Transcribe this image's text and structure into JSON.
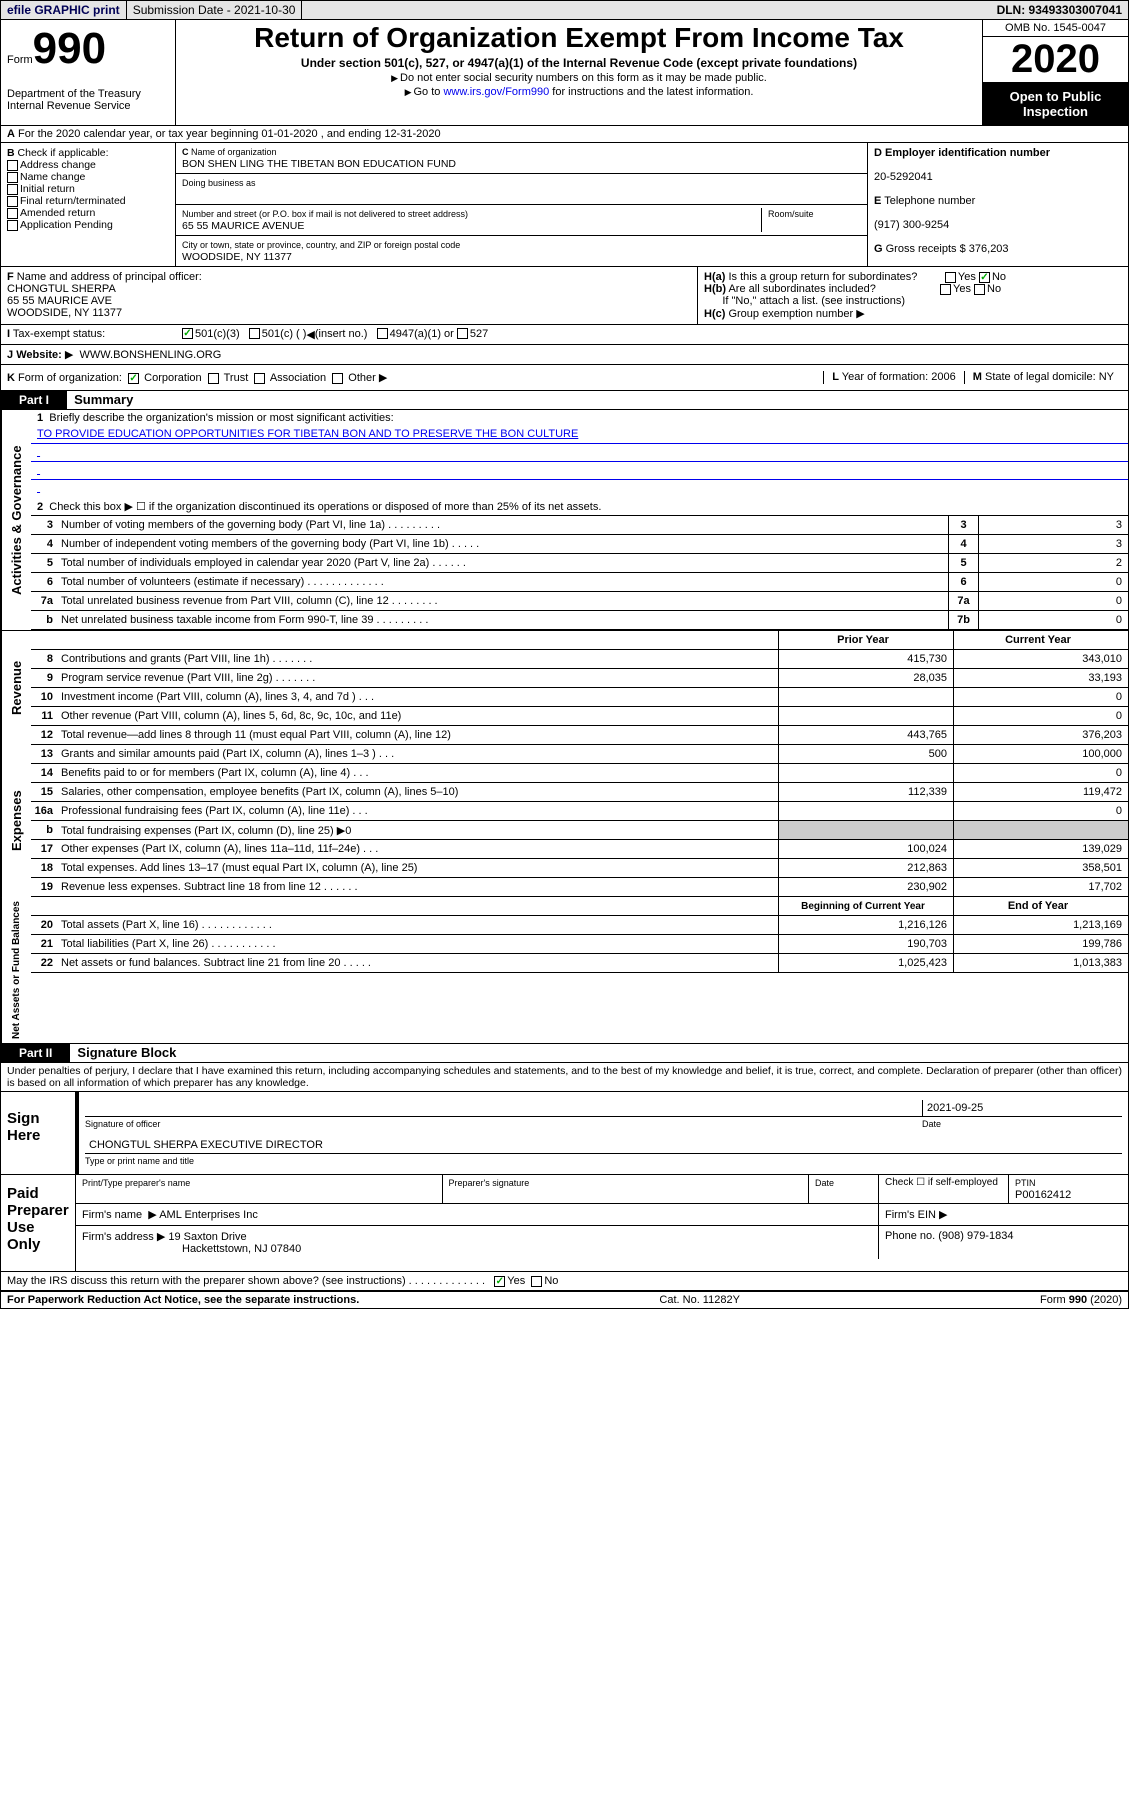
{
  "topbar": {
    "efile_label": "efile GRAPHIC print",
    "submission_label": "Submission Date - 2021-10-30",
    "dln_label": "DLN: 93493303007041"
  },
  "header": {
    "form_prefix": "Form",
    "form_number": "990",
    "dept": "Department of the Treasury\nInternal Revenue Service",
    "title": "Return of Organization Exempt From Income Tax",
    "subtitle": "Under section 501(c), 527, or 4947(a)(1) of the Internal Revenue Code (except private foundations)",
    "note1": "Do not enter social security numbers on this form as it may be made public.",
    "note2_pre": "Go to ",
    "note2_link": "www.irs.gov/Form990",
    "note2_post": " for instructions and the latest information.",
    "omb": "OMB No. 1545-0047",
    "year": "2020",
    "inspection": "Open to Public Inspection"
  },
  "row_a": "For the 2020 calendar year, or tax year beginning 01-01-2020    , and ending 12-31-2020",
  "check_b": {
    "label": "Check if applicable:",
    "items": [
      "Address change",
      "Name change",
      "Initial return",
      "Final return/terminated",
      "Amended return",
      "Application Pending"
    ]
  },
  "org": {
    "c_label": "Name of organization",
    "name": "BON SHEN LING THE TIBETAN BON EDUCATION FUND",
    "dba_label": "Doing business as",
    "street_label": "Number and street (or P.O. box if mail is not delivered to street address)",
    "street": "65 55 MAURICE AVENUE",
    "room_label": "Room/suite",
    "city_label": "City or town, state or province, country, and ZIP or foreign postal code",
    "city": "WOODSIDE, NY  11377"
  },
  "d": {
    "ein_label": "Employer identification number",
    "ein": "20-5292041",
    "phone_label": "Telephone number",
    "phone": "(917) 300-9254",
    "gross_label": "Gross receipts $",
    "gross": "376,203"
  },
  "f": {
    "label": "Name and address of principal officer:",
    "name": "CHONGTUL SHERPA",
    "addr1": "65 55 MAURICE AVE",
    "addr2": "WOODSIDE, NY  11377"
  },
  "h": {
    "a_label": "Is this a group return for subordinates?",
    "b_label": "Are all subordinates included?",
    "b_note": "If \"No,\" attach a list. (see instructions)",
    "c_label": "Group exemption number"
  },
  "i": {
    "label": "Tax-exempt status:",
    "opt1": "501(c)(3)",
    "opt2": "501(c) (  )",
    "opt2b": "(insert no.)",
    "opt3": "4947(a)(1) or",
    "opt4": "527"
  },
  "j": {
    "label": "Website:",
    "value": "WWW.BONSHENLING.ORG"
  },
  "k": {
    "label": "Form of organization:",
    "opts": [
      "Corporation",
      "Trust",
      "Association",
      "Other"
    ],
    "l_label": "Year of formation:",
    "l_val": "2006",
    "m_label": "State of legal domicile:",
    "m_val": "NY"
  },
  "part1": {
    "hdr": "Part I",
    "title": "Summary",
    "q1_label": "Briefly describe the organization's mission or most significant activities:",
    "q1_val": "TO PROVIDE EDUCATION OPPORTUNITIES FOR TIBETAN BON AND TO PRESERVE THE BON CULTURE",
    "q2_label": "Check this box ▶ ☐ if the organization discontinued its operations or disposed of more than 25% of its net assets.",
    "lines_gov": [
      {
        "n": "3",
        "t": "Number of voting members of the governing body (Part VI, line 1a)   .   .   .   .   .   .   .   .   .",
        "bn": "3",
        "v": "3"
      },
      {
        "n": "4",
        "t": "Number of independent voting members of the governing body (Part VI, line 1b)   .   .   .   .   .",
        "bn": "4",
        "v": "3"
      },
      {
        "n": "5",
        "t": "Total number of individuals employed in calendar year 2020 (Part V, line 2a)   .   .   .   .   .   .",
        "bn": "5",
        "v": "2"
      },
      {
        "n": "6",
        "t": "Total number of volunteers (estimate if necessary)   .   .   .   .   .   .   .   .   .   .   .   .   .",
        "bn": "6",
        "v": "0"
      },
      {
        "n": "7a",
        "t": "Total unrelated business revenue from Part VIII, column (C), line 12   .   .   .   .   .   .   .   .",
        "bn": "7a",
        "v": "0"
      },
      {
        "n": "b",
        "t": "Net unrelated business taxable income from Form 990-T, line 39   .   .   .   .   .   .   .   .   .",
        "bn": "7b",
        "v": "0"
      }
    ],
    "prior_label": "Prior Year",
    "current_label": "Current Year",
    "lines_rev": [
      {
        "n": "8",
        "t": "Contributions and grants (Part VIII, line 1h)   .   .   .   .   .   .   .",
        "p": "415,730",
        "c": "343,010"
      },
      {
        "n": "9",
        "t": "Program service revenue (Part VIII, line 2g)   .   .   .   .   .   .   .",
        "p": "28,035",
        "c": "33,193"
      },
      {
        "n": "10",
        "t": "Investment income (Part VIII, column (A), lines 3, 4, and 7d )   .   .   .",
        "p": "",
        "c": "0"
      },
      {
        "n": "11",
        "t": "Other revenue (Part VIII, column (A), lines 5, 6d, 8c, 9c, 10c, and 11e)",
        "p": "",
        "c": "0"
      },
      {
        "n": "12",
        "t": "Total revenue—add lines 8 through 11 (must equal Part VIII, column (A), line 12)",
        "p": "443,765",
        "c": "376,203"
      }
    ],
    "lines_exp": [
      {
        "n": "13",
        "t": "Grants and similar amounts paid (Part IX, column (A), lines 1–3 )   .   .   .",
        "p": "500",
        "c": "100,000"
      },
      {
        "n": "14",
        "t": "Benefits paid to or for members (Part IX, column (A), line 4)   .   .   .",
        "p": "",
        "c": "0"
      },
      {
        "n": "15",
        "t": "Salaries, other compensation, employee benefits (Part IX, column (A), lines 5–10)",
        "p": "112,339",
        "c": "119,472"
      },
      {
        "n": "16a",
        "t": "Professional fundraising fees (Part IX, column (A), line 11e)   .   .   .",
        "p": "",
        "c": "0"
      },
      {
        "n": "b",
        "t": "Total fundraising expenses (Part IX, column (D), line 25) ▶0",
        "p": "gray",
        "c": "gray"
      },
      {
        "n": "17",
        "t": "Other expenses (Part IX, column (A), lines 11a–11d, 11f–24e)   .   .   .",
        "p": "100,024",
        "c": "139,029"
      },
      {
        "n": "18",
        "t": "Total expenses. Add lines 13–17 (must equal Part IX, column (A), line 25)",
        "p": "212,863",
        "c": "358,501"
      },
      {
        "n": "19",
        "t": "Revenue less expenses. Subtract line 18 from line 12   .   .   .   .   .   .",
        "p": "230,902",
        "c": "17,702"
      }
    ],
    "begin_label": "Beginning of Current Year",
    "end_label": "End of Year",
    "lines_net": [
      {
        "n": "20",
        "t": "Total assets (Part X, line 16)   .   .   .   .   .   .   .   .   .   .   .   .",
        "p": "1,216,126",
        "c": "1,213,169"
      },
      {
        "n": "21",
        "t": "Total liabilities (Part X, line 26)   .   .   .   .   .   .   .   .   .   .   .",
        "p": "190,703",
        "c": "199,786"
      },
      {
        "n": "22",
        "t": "Net assets or fund balances. Subtract line 21 from line 20   .   .   .   .   .",
        "p": "1,025,423",
        "c": "1,013,383"
      }
    ]
  },
  "vtabs": {
    "gov": "Activities & Governance",
    "rev": "Revenue",
    "exp": "Expenses",
    "net": "Net Assets or Fund Balances"
  },
  "part2": {
    "hdr": "Part II",
    "title": "Signature Block",
    "decl": "Under penalties of perjury, I declare that I have examined this return, including accompanying schedules and statements, and to the best of my knowledge and belief, it is true, correct, and complete. Declaration of preparer (other than officer) is based on all information of which preparer has any knowledge.",
    "sign_here": "Sign Here",
    "sig_officer": "Signature of officer",
    "sig_date": "2021-09-25",
    "date_label": "Date",
    "officer_name": "CHONGTUL SHERPA  EXECUTIVE DIRECTOR",
    "type_label": "Type or print name and title",
    "paid_label": "Paid Preparer Use Only",
    "prep_name_label": "Print/Type preparer's name",
    "prep_sig_label": "Preparer's signature",
    "self_emp": "Check ☐ if self-employed",
    "ptin_label": "PTIN",
    "ptin": "P00162412",
    "firm_name_label": "Firm's name",
    "firm_name": "AML Enterprises Inc",
    "firm_ein_label": "Firm's EIN",
    "firm_addr_label": "Firm's address",
    "firm_addr1": "19 Saxton Drive",
    "firm_addr2": "Hackettstown, NJ  07840",
    "firm_phone_label": "Phone no.",
    "firm_phone": "(908) 979-1834",
    "discuss": "May the IRS discuss this return with the preparer shown above? (see instructions)   .   .   .   .   .   .   .   .   .   .   .   .   ."
  },
  "footer": {
    "left": "For Paperwork Reduction Act Notice, see the separate instructions.",
    "mid": "Cat. No. 11282Y",
    "right": "Form 990 (2020)"
  }
}
